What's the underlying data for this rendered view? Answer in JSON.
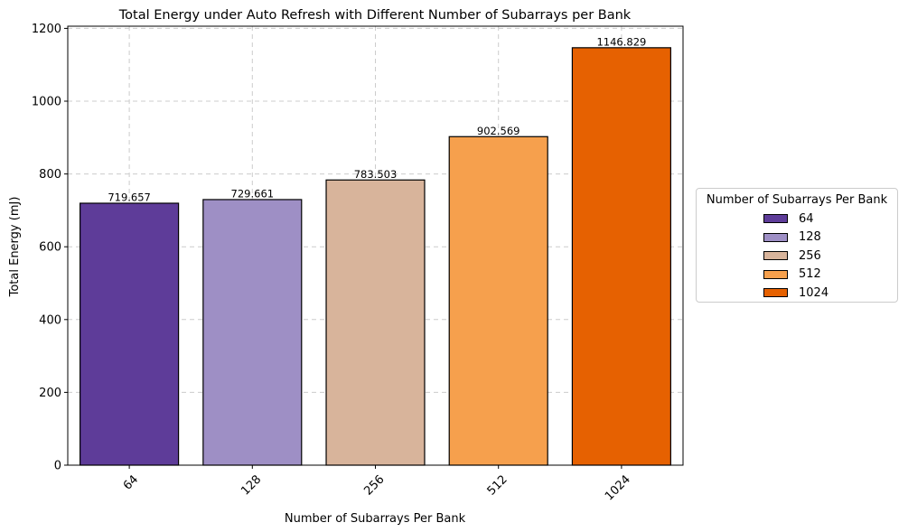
{
  "chart_data": {
    "type": "bar",
    "title": "Total Energy under Auto Refresh with Different Number of Subarrays per Bank",
    "xlabel": "Number of Subarrays Per Bank",
    "ylabel": "Total Energy (mJ)",
    "categories": [
      "64",
      "128",
      "256",
      "512",
      "1024"
    ],
    "values": [
      719.657,
      729.661,
      783.503,
      902.569,
      1146.829
    ],
    "value_labels": [
      "719.657",
      "729.661",
      "783.503",
      "902.569",
      "1146.829"
    ],
    "colors": [
      "#5e3c99",
      "#9e8fc5",
      "#d8b49b",
      "#f6a04d",
      "#e66101"
    ],
    "ylim": [
      0,
      1206
    ],
    "yticks": [
      0,
      200,
      400,
      600,
      800,
      1000,
      1200
    ],
    "grid": true,
    "legend": {
      "title": "Number of Subarrays Per Bank",
      "placement": "right",
      "entries": [
        "64",
        "128",
        "256",
        "512",
        "1024"
      ]
    }
  }
}
